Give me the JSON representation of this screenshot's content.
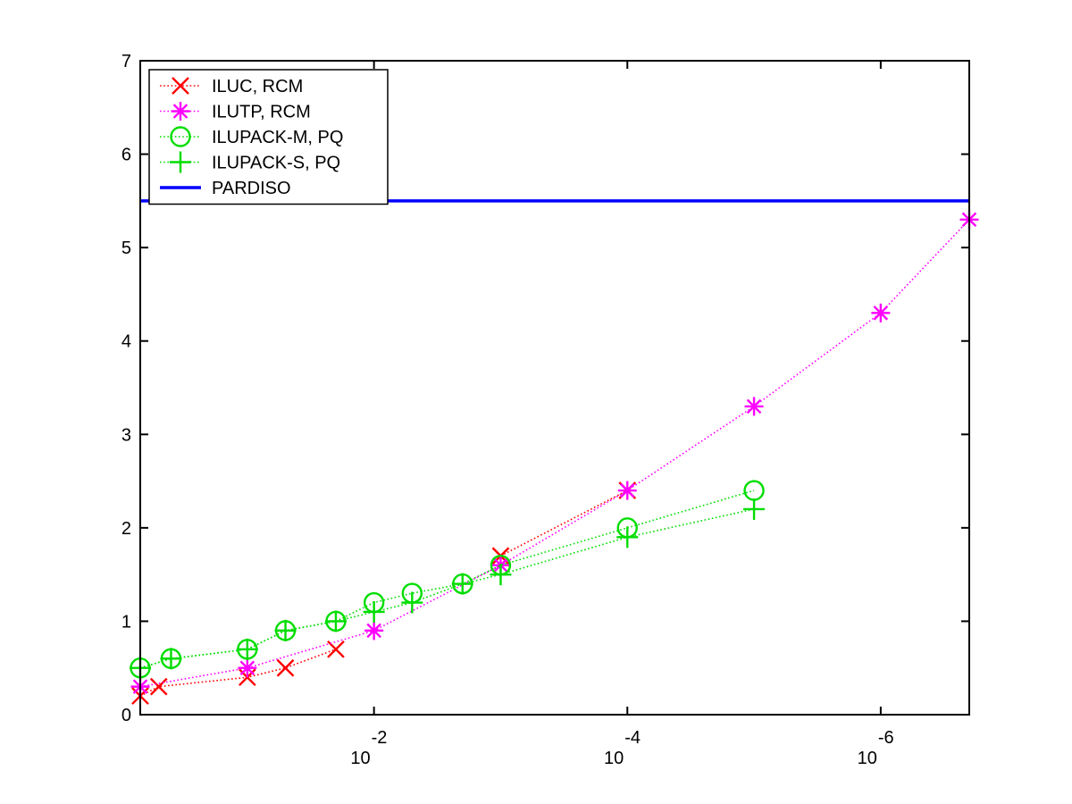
{
  "chart_data": {
    "type": "line",
    "title": "",
    "xlabel": "",
    "ylabel": "",
    "xscale": "log-reversed",
    "xlim": [
      0.7,
      2e-07
    ],
    "ylim": [
      0,
      7
    ],
    "y_ticks": [
      "0",
      "1",
      "2",
      "3",
      "4",
      "5",
      "6",
      "7"
    ],
    "x_ticks": [
      {
        "base": "10",
        "exp": "-2",
        "value": 0.01
      },
      {
        "base": "10",
        "exp": "-4",
        "value": 0.0001
      },
      {
        "base": "10",
        "exp": "-6",
        "value": 1e-06
      }
    ],
    "grid": false,
    "legend_position": "top-left",
    "series": [
      {
        "name": "ILUC, RCM",
        "color": "#ff0000",
        "marker": "x",
        "linestyle": "dotted",
        "x": [
          0.7,
          0.5,
          0.1,
          0.05,
          0.02
        ],
        "y": [
          0.2,
          0.3,
          0.4,
          0.5,
          0.7
        ]
      },
      {
        "name": "ILUC, RCM",
        "color": "#ff0000",
        "marker": "x",
        "linestyle": "dotted",
        "x": [
          0.001,
          0.0001
        ],
        "y": [
          1.7,
          2.4
        ]
      },
      {
        "name": "ILUTP, RCM",
        "color": "#ff00ff",
        "marker": "asterisk",
        "linestyle": "dotted",
        "x": [
          0.7,
          0.1,
          0.01,
          0.001,
          0.0001,
          1e-05,
          1e-06,
          2e-07
        ],
        "y": [
          0.3,
          0.5,
          0.9,
          1.6,
          2.4,
          3.3,
          4.3,
          5.3
        ]
      },
      {
        "name": "ILUPACK-M, PQ",
        "color": "#00dd00",
        "marker": "circle",
        "linestyle": "dotted",
        "x": [
          0.7,
          0.4,
          0.1,
          0.05,
          0.02,
          0.01,
          0.005,
          0.002,
          0.001,
          0.0001,
          1e-05
        ],
        "y": [
          0.5,
          0.6,
          0.7,
          0.9,
          1.0,
          1.2,
          1.3,
          1.4,
          1.6,
          2.0,
          2.4
        ]
      },
      {
        "name": "ILUPACK-S, PQ",
        "color": "#00dd00",
        "marker": "plus",
        "linestyle": "dotted",
        "x": [
          0.7,
          0.4,
          0.1,
          0.05,
          0.02,
          0.01,
          0.005,
          0.002,
          0.001,
          0.0001,
          1e-05
        ],
        "y": [
          0.5,
          0.6,
          0.7,
          0.9,
          1.0,
          1.1,
          1.2,
          1.4,
          1.5,
          1.9,
          2.2
        ]
      },
      {
        "name": "PARDISO",
        "color": "#0000ff",
        "marker": "none",
        "linestyle": "solid",
        "x": [
          0.7,
          2e-07
        ],
        "y": [
          5.5,
          5.5
        ]
      }
    ],
    "legend": [
      {
        "label": "ILUC, RCM",
        "color": "#ff0000",
        "marker": "x",
        "linestyle": "dotted"
      },
      {
        "label": "ILUTP, RCM",
        "color": "#ff00ff",
        "marker": "asterisk",
        "linestyle": "dotted"
      },
      {
        "label": "ILUPACK-M, PQ",
        "color": "#00dd00",
        "marker": "circle",
        "linestyle": "dotted"
      },
      {
        "label": "ILUPACK-S, PQ",
        "color": "#00dd00",
        "marker": "plus",
        "linestyle": "dotted"
      },
      {
        "label": "PARDISO",
        "color": "#0000ff",
        "marker": "none",
        "linestyle": "solid"
      }
    ]
  }
}
